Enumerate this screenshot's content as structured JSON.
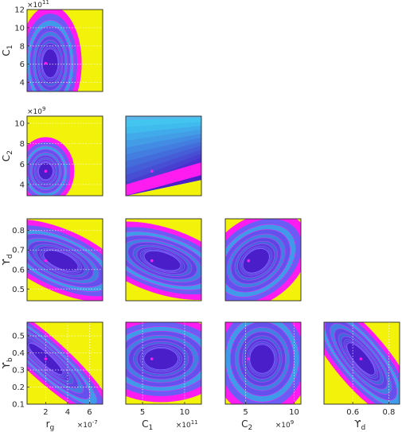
{
  "colors": {
    "background_fill": "#f2f20a",
    "contour_low": "#4a1fc9",
    "contour_high": "#ff1cf0",
    "best_fit_marker": "#ff1cf0",
    "axes": "#262626",
    "grid": "#ffffff"
  },
  "chart_data": [
    {
      "type": "contour",
      "panel": "C1 vs r_g",
      "ylabel": "C",
      "ylabel_sub": "1",
      "x": {
        "ticks": [],
        "lim": [
          0.3,
          7.2
        ]
      },
      "y": {
        "ticks": [
          "4",
          "6",
          "8",
          "10",
          "12"
        ],
        "tick_values": [
          4,
          6,
          8,
          10,
          12
        ],
        "lim": [
          3,
          12
        ],
        "multiplier": "×10",
        "multiplier_exp": "11"
      },
      "best_fit": {
        "x": 2.0,
        "y": 6.1
      }
    },
    {
      "type": "contour",
      "panel": "C2 vs r_g",
      "ylabel": "C",
      "ylabel_sub": "2",
      "x": {
        "ticks": [],
        "lim": [
          0.3,
          7.2
        ]
      },
      "y": {
        "ticks": [
          "4",
          "6",
          "8",
          "10"
        ],
        "tick_values": [
          4,
          6,
          8,
          10
        ],
        "lim": [
          2.9,
          10.7
        ],
        "multiplier": "×10",
        "multiplier_exp": "9"
      },
      "best_fit": {
        "x": 2.0,
        "y": 5.3
      }
    },
    {
      "type": "contour",
      "panel": "C2 vs C1",
      "x": {
        "ticks": [],
        "lim": [
          3,
          12
        ]
      },
      "y": {
        "ticks": [],
        "lim": [
          2.9,
          10.7
        ]
      },
      "best_fit": {
        "x": 6.1,
        "y": 5.3
      }
    },
    {
      "type": "contour",
      "panel": "Upsilon_d vs r_g",
      "ylabel": "ϒ",
      "ylabel_sub": "d",
      "x": {
        "ticks": [],
        "lim": [
          0.3,
          7.2
        ]
      },
      "y": {
        "ticks": [
          "0.5",
          "0.6",
          "0.7",
          "0.8"
        ],
        "tick_values": [
          0.5,
          0.6,
          0.7,
          0.8
        ],
        "lim": [
          0.44,
          0.86
        ]
      },
      "best_fit": {
        "x": 2.0,
        "y": 0.645
      }
    },
    {
      "type": "contour",
      "panel": "Upsilon_d vs C1",
      "x": {
        "ticks": [],
        "lim": [
          3,
          12
        ]
      },
      "y": {
        "ticks": [],
        "lim": [
          0.44,
          0.86
        ]
      },
      "best_fit": {
        "x": 6.1,
        "y": 0.645
      }
    },
    {
      "type": "contour",
      "panel": "Upsilon_d vs C2",
      "x": {
        "ticks": [],
        "lim": [
          2.9,
          10.7
        ]
      },
      "y": {
        "ticks": [],
        "lim": [
          0.44,
          0.86
        ]
      },
      "best_fit": {
        "x": 5.3,
        "y": 0.645
      }
    },
    {
      "type": "contour",
      "panel": "Upsilon_b vs r_g",
      "xlabel": "r",
      "xlabel_sub": "g",
      "ylabel": "ϒ",
      "ylabel_sub": "b",
      "x": {
        "ticks": [
          "2",
          "4",
          "6"
        ],
        "tick_values": [
          2,
          4,
          6
        ],
        "lim": [
          0.3,
          7.2
        ],
        "multiplier": "×10",
        "multiplier_exp": "-7"
      },
      "y": {
        "ticks": [
          "0.1",
          "0.2",
          "0.3",
          "0.4",
          "0.5"
        ],
        "tick_values": [
          0.1,
          0.2,
          0.3,
          0.4,
          0.5
        ],
        "lim": [
          0.1,
          0.58
        ]
      },
      "best_fit": {
        "x": 2.0,
        "y": 0.365
      }
    },
    {
      "type": "contour",
      "panel": "Upsilon_b vs C1",
      "xlabel": "C",
      "xlabel_sub": "1",
      "x": {
        "ticks": [
          "5",
          "10"
        ],
        "tick_values": [
          5,
          10
        ],
        "lim": [
          3,
          12
        ],
        "multiplier": "×10",
        "multiplier_exp": "11"
      },
      "y": {
        "ticks": [],
        "lim": [
          0.1,
          0.58
        ]
      },
      "best_fit": {
        "x": 6.1,
        "y": 0.365
      }
    },
    {
      "type": "contour",
      "panel": "Upsilon_b vs C2",
      "xlabel": "C",
      "xlabel_sub": "2",
      "x": {
        "ticks": [
          "5",
          "10"
        ],
        "tick_values": [
          5,
          10
        ],
        "lim": [
          2.9,
          10.7
        ],
        "multiplier": "×10",
        "multiplier_exp": "9"
      },
      "y": {
        "ticks": [],
        "lim": [
          0.1,
          0.58
        ]
      },
      "best_fit": {
        "x": 5.3,
        "y": 0.365
      }
    },
    {
      "type": "contour",
      "panel": "Upsilon_b vs Upsilon_d",
      "xlabel": "ϒ",
      "xlabel_sub": "d",
      "x": {
        "ticks": [
          "0.6",
          "0.8"
        ],
        "tick_values": [
          0.6,
          0.8
        ],
        "lim": [
          0.44,
          0.86
        ]
      },
      "y": {
        "ticks": [],
        "lim": [
          0.1,
          0.58
        ]
      },
      "best_fit": {
        "x": 0.645,
        "y": 0.365
      }
    }
  ]
}
